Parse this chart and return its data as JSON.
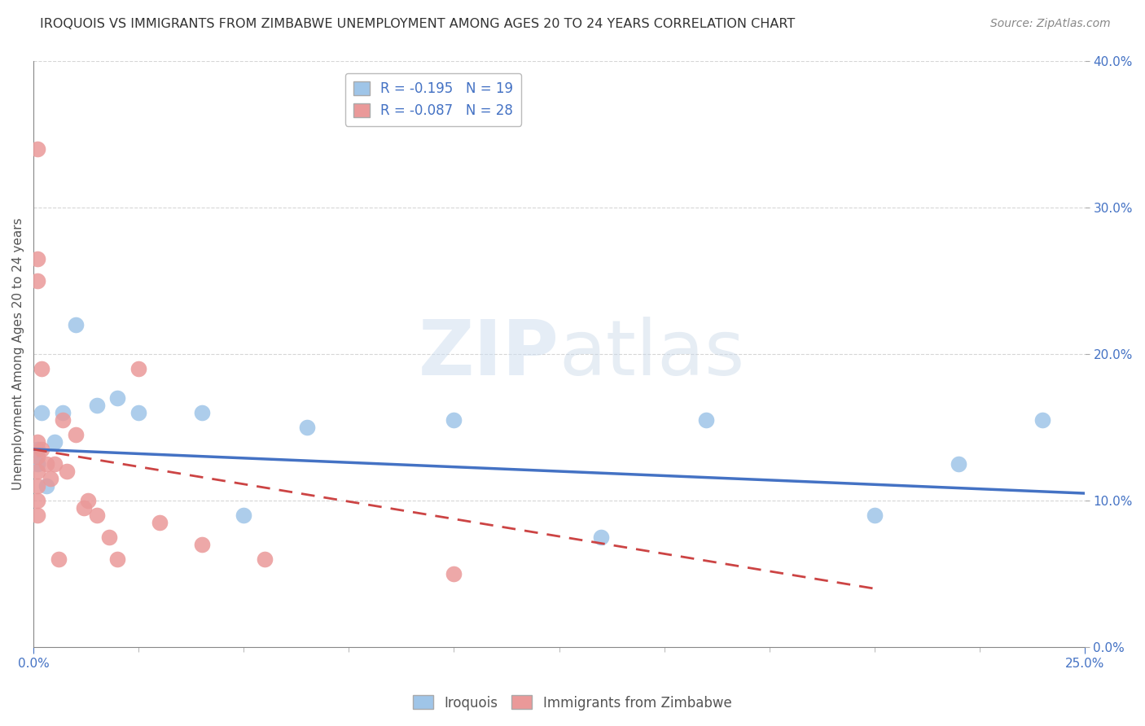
{
  "title": "IROQUOIS VS IMMIGRANTS FROM ZIMBABWE UNEMPLOYMENT AMONG AGES 20 TO 24 YEARS CORRELATION CHART",
  "source": "Source: ZipAtlas.com",
  "ylabel": "Unemployment Among Ages 20 to 24 years",
  "xlim": [
    0.0,
    0.25
  ],
  "ylim": [
    0.0,
    0.4
  ],
  "xtick_positions": [
    0.0,
    0.25
  ],
  "xtick_labels": [
    "0.0%",
    "25.0%"
  ],
  "yticks": [
    0.0,
    0.1,
    0.2,
    0.3,
    0.4
  ],
  "ytick_labels": [
    "0.0%",
    "10.0%",
    "20.0%",
    "30.0%",
    "40.0%"
  ],
  "background_color": "#ffffff",
  "legend_R1": "R = -0.195",
  "legend_N1": "N = 19",
  "legend_R2": "R = -0.087",
  "legend_N2": "N = 28",
  "legend_label1": "Iroquois",
  "legend_label2": "Immigrants from Zimbabwe",
  "blue_color": "#9fc5e8",
  "pink_color": "#ea9999",
  "blue_line_color": "#4472c4",
  "pink_line_color": "#cc4444",
  "grid_color": "#cccccc",
  "iroquois_x": [
    0.001,
    0.001,
    0.002,
    0.003,
    0.005,
    0.007,
    0.01,
    0.015,
    0.02,
    0.025,
    0.04,
    0.05,
    0.065,
    0.1,
    0.135,
    0.16,
    0.2,
    0.22,
    0.24
  ],
  "iroquois_y": [
    0.125,
    0.135,
    0.16,
    0.11,
    0.14,
    0.16,
    0.22,
    0.165,
    0.17,
    0.16,
    0.16,
    0.09,
    0.15,
    0.155,
    0.075,
    0.155,
    0.09,
    0.125,
    0.155
  ],
  "zimbabwe_x": [
    0.001,
    0.001,
    0.001,
    0.001,
    0.001,
    0.001,
    0.001,
    0.001,
    0.001,
    0.002,
    0.002,
    0.003,
    0.004,
    0.005,
    0.006,
    0.007,
    0.008,
    0.01,
    0.012,
    0.013,
    0.015,
    0.018,
    0.02,
    0.025,
    0.03,
    0.04,
    0.055,
    0.1
  ],
  "zimbabwe_y": [
    0.34,
    0.265,
    0.25,
    0.14,
    0.13,
    0.12,
    0.11,
    0.1,
    0.09,
    0.19,
    0.135,
    0.125,
    0.115,
    0.125,
    0.06,
    0.155,
    0.12,
    0.145,
    0.095,
    0.1,
    0.09,
    0.075,
    0.06,
    0.19,
    0.085,
    0.07,
    0.06,
    0.05
  ],
  "blue_trend_x0": 0.0,
  "blue_trend_x1": 0.25,
  "blue_trend_y0": 0.135,
  "blue_trend_y1": 0.105,
  "pink_trend_x0": 0.0,
  "pink_trend_x1": 0.2,
  "pink_trend_y0": 0.135,
  "pink_trend_y1": 0.04,
  "title_fontsize": 11.5,
  "axis_fontsize": 11,
  "tick_fontsize": 11,
  "source_fontsize": 10,
  "minor_xticks": [
    0.025,
    0.05,
    0.075,
    0.1,
    0.125,
    0.15,
    0.175,
    0.2,
    0.225
  ]
}
